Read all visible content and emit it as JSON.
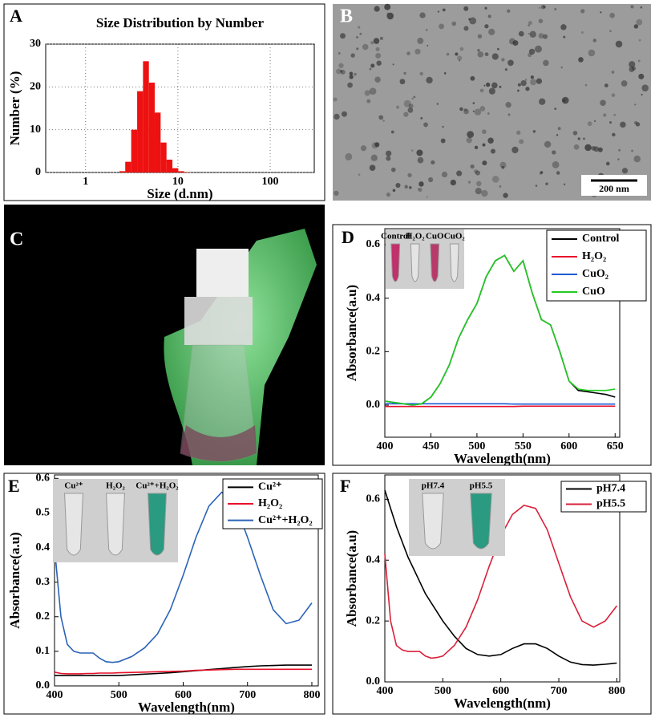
{
  "chart_data": [
    {
      "panel": "A",
      "type": "histogram",
      "title": "Size Distribution by Number",
      "x_label": "Size (d.nm)",
      "y_label": "Number (%)",
      "bins": [
        2.33,
        2.69,
        3.12,
        3.62,
        4.19,
        4.85,
        5.61,
        6.5,
        7.53,
        8.72,
        10.1,
        11.7,
        13.5
      ],
      "values": [
        0.3,
        2.5,
        10,
        19,
        26,
        21,
        14,
        7,
        3,
        1,
        0.3,
        0.1
      ],
      "color": "#ee1111",
      "xscale": "log",
      "xlim": [
        0.37,
        300
      ],
      "xticks": [
        1,
        10,
        100
      ],
      "ylim": [
        0,
        30
      ],
      "yticks": [
        0,
        10,
        20,
        30
      ],
      "grid": true
    },
    {
      "panel": "D",
      "type": "line",
      "x_label": "Wavelength(nm)",
      "y_label": "Absorbance(a.u)",
      "inset_labels": [
        "Control",
        "H₂O₂",
        "CuO",
        "CuO₂"
      ],
      "x": [
        400,
        410,
        420,
        430,
        440,
        450,
        460,
        470,
        480,
        490,
        500,
        510,
        520,
        530,
        540,
        550,
        560,
        570,
        580,
        590,
        600,
        610,
        620,
        630,
        640,
        650
      ],
      "series": [
        {
          "name": "Control",
          "color": "#000000",
          "values": [
            0.015,
            0.01,
            0.005,
            0,
            0.005,
            0.03,
            0.08,
            0.15,
            0.25,
            0.32,
            0.38,
            0.48,
            0.54,
            0.56,
            0.5,
            0.54,
            0.42,
            0.32,
            0.3,
            0.2,
            0.09,
            0.055,
            0.05,
            0.045,
            0.04,
            0.03
          ]
        },
        {
          "name": "H₂O₂",
          "color": "#e8102a",
          "values": [
            -0.005,
            -0.005,
            -0.005,
            -0.005,
            -0.005,
            -0.005,
            -0.005,
            -0.005,
            -0.005,
            -0.005,
            -0.005,
            -0.005,
            -0.005,
            -0.005,
            -0.005,
            -0.004,
            -0.004,
            -0.004,
            -0.004,
            -0.004,
            -0.004,
            -0.004,
            -0.004,
            -0.004,
            -0.004,
            -0.004
          ]
        },
        {
          "name": "CuO₂",
          "color": "#1f5bd6",
          "values": [
            0.005,
            0.005,
            0.005,
            0.005,
            0.005,
            0.005,
            0.005,
            0.005,
            0.005,
            0.005,
            0.005,
            0.005,
            0.005,
            0.005,
            0.004,
            0.004,
            0.004,
            0.004,
            0.004,
            0.004,
            0.004,
            0.004,
            0.004,
            0.004,
            0.004,
            0.004
          ]
        },
        {
          "name": "CuO",
          "color": "#22cc22",
          "values": [
            0.015,
            0.01,
            0.005,
            0,
            0.005,
            0.03,
            0.08,
            0.15,
            0.25,
            0.32,
            0.38,
            0.48,
            0.54,
            0.56,
            0.5,
            0.54,
            0.42,
            0.32,
            0.3,
            0.2,
            0.09,
            0.06,
            0.055,
            0.055,
            0.055,
            0.06
          ]
        }
      ],
      "xlim": [
        400,
        655
      ],
      "xticks": [
        400,
        450,
        500,
        550,
        600,
        650
      ],
      "ylim": [
        -0.12,
        0.66
      ],
      "yticks": [
        {
          "value": 0,
          "label": "0.0"
        },
        0.2,
        0.4,
        0.6
      ]
    },
    {
      "panel": "E",
      "type": "line",
      "x_label": "Wavelength(nm)",
      "y_label": "Absorbance(a.u)",
      "inset_labels": [
        "Cu²⁺",
        "H₂O₂",
        "Cu²⁺+H₂O₂"
      ],
      "x": [
        400,
        410,
        420,
        430,
        440,
        450,
        460,
        470,
        480,
        490,
        500,
        520,
        540,
        560,
        580,
        600,
        620,
        640,
        660,
        680,
        700,
        720,
        740,
        760,
        780,
        800
      ],
      "series": [
        {
          "name": "Cu²⁺",
          "color": "#000000",
          "values": [
            0.03,
            0.03,
            0.03,
            0.03,
            0.03,
            0.03,
            0.03,
            0.03,
            0.03,
            0.03,
            0.03,
            0.032,
            0.034,
            0.036,
            0.038,
            0.041,
            0.044,
            0.047,
            0.05,
            0.053,
            0.056,
            0.058,
            0.059,
            0.06,
            0.06,
            0.06
          ]
        },
        {
          "name": "H₂O₂",
          "color": "#e8102a",
          "values": [
            0.04,
            0.036,
            0.035,
            0.035,
            0.035,
            0.036,
            0.036,
            0.037,
            0.037,
            0.037,
            0.038,
            0.039,
            0.04,
            0.041,
            0.042,
            0.043,
            0.045,
            0.046,
            0.047,
            0.048,
            0.048,
            0.048,
            0.048,
            0.048,
            0.048,
            0.048
          ]
        },
        {
          "name": "Cu²⁺+H₂O₂",
          "color": "#2a63b8",
          "values": [
            0.4,
            0.2,
            0.12,
            0.1,
            0.095,
            0.095,
            0.095,
            0.08,
            0.07,
            0.068,
            0.07,
            0.085,
            0.11,
            0.15,
            0.22,
            0.32,
            0.43,
            0.52,
            0.56,
            0.53,
            0.43,
            0.32,
            0.22,
            0.18,
            0.19,
            0.24
          ]
        }
      ],
      "xlim": [
        400,
        810
      ],
      "xticks": [
        400,
        500,
        600,
        700,
        800
      ],
      "ylim": [
        0,
        0.61
      ],
      "yticks": [
        {
          "value": 0,
          "label": "0.0"
        },
        0.1,
        0.2,
        0.3,
        0.4,
        0.5,
        0.6
      ]
    },
    {
      "panel": "F",
      "type": "line",
      "x_label": "Wavelength(nm)",
      "y_label": "Absorbance(a.u)",
      "inset_labels": [
        "pH7.4",
        "pH5.5"
      ],
      "x": [
        400,
        410,
        420,
        430,
        440,
        450,
        460,
        470,
        480,
        490,
        500,
        520,
        540,
        560,
        580,
        600,
        620,
        640,
        660,
        680,
        700,
        720,
        740,
        760,
        780,
        800
      ],
      "series": [
        {
          "name": "pH7.4",
          "color": "#000000",
          "values": [
            0.63,
            0.57,
            0.51,
            0.46,
            0.41,
            0.37,
            0.33,
            0.29,
            0.26,
            0.23,
            0.2,
            0.15,
            0.11,
            0.09,
            0.085,
            0.09,
            0.11,
            0.125,
            0.125,
            0.11,
            0.085,
            0.065,
            0.057,
            0.055,
            0.058,
            0.062
          ]
        },
        {
          "name": "pH5.5",
          "color": "#d8203a",
          "values": [
            0.42,
            0.2,
            0.12,
            0.105,
            0.1,
            0.1,
            0.1,
            0.085,
            0.078,
            0.08,
            0.085,
            0.12,
            0.18,
            0.27,
            0.38,
            0.48,
            0.55,
            0.58,
            0.57,
            0.5,
            0.39,
            0.28,
            0.2,
            0.18,
            0.2,
            0.25
          ]
        }
      ],
      "xlim": [
        400,
        805
      ],
      "xticks": [
        400,
        500,
        600,
        700,
        800
      ],
      "ylim": [
        0,
        0.68
      ],
      "yticks": [
        {
          "value": 0,
          "label": "0.0"
        },
        0.2,
        0.4,
        0.6
      ]
    }
  ],
  "images": [
    {
      "panel": "B",
      "scale_bar": "200 nm"
    },
    {
      "panel": "C"
    }
  ]
}
